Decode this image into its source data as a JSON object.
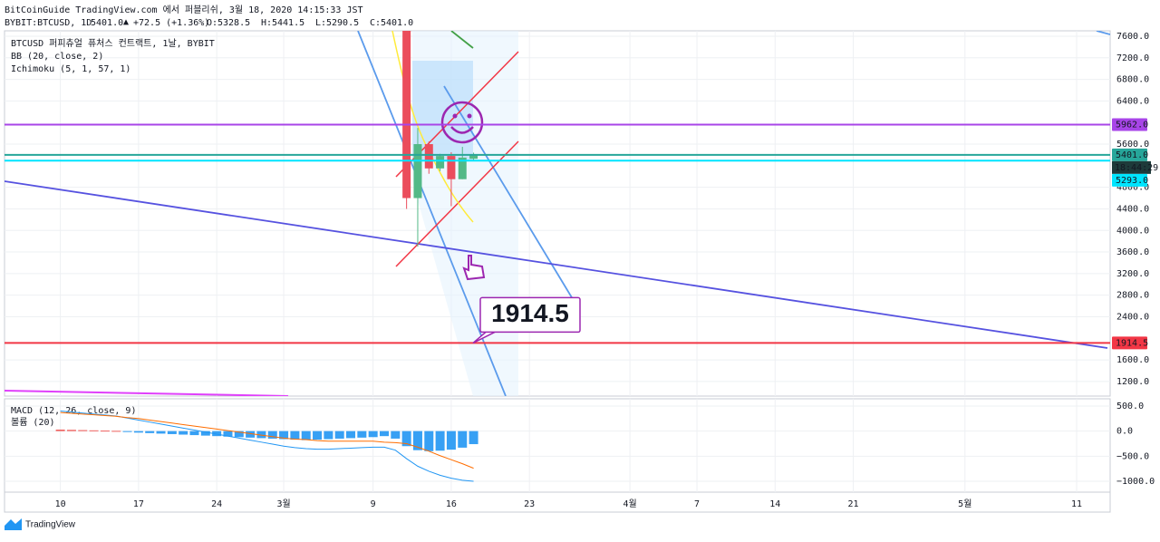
{
  "header": {
    "title": "BitCoinGuide TradingView.com 에서 퍼블리쉬, 3월 18, 2020 14:15:33 JST",
    "symbol": "BYBIT:BTCUSD, 1D",
    "last": "5401.0",
    "arrow": "▲",
    "change": "+72.5 (+1.36%)",
    "ohlc": [
      {
        "label": "O:",
        "value": "5328.5"
      },
      {
        "label": "H:",
        "value": "5441.5"
      },
      {
        "label": "L:",
        "value": "5290.5"
      },
      {
        "label": "C:",
        "value": "5401.0"
      }
    ]
  },
  "chart_data": [
    {
      "type": "candlestick",
      "legend": [
        "BTCUSD 퍼피츄얼 퓨처스 컨트랙트, 1날, BYBIT",
        "BB (20, close, 2)",
        "Ichimoku (5, 1, 57, 1)"
      ],
      "x": [
        31,
        32,
        33,
        34,
        35,
        36,
        37
      ],
      "open": [
        7900,
        4600,
        5600,
        5150,
        5380,
        4950,
        5328.5
      ],
      "high": [
        7970,
        5900,
        5650,
        5420,
        5450,
        5550,
        5441.5
      ],
      "low": [
        4400,
        3700,
        5050,
        5100,
        4450,
        4950,
        5290.5
      ],
      "close": [
        4600,
        5600,
        5150,
        5380,
        4950,
        5350,
        5401
      ],
      "up_color": "#53b987",
      "down_color": "#eb4d5c",
      "xlim": [
        -5,
        94
      ],
      "xticks": [
        {
          "value": 0,
          "label": "10"
        },
        {
          "value": 7,
          "label": "17"
        },
        {
          "value": 14,
          "label": "24"
        },
        {
          "value": 20,
          "label": "3월"
        },
        {
          "value": 28,
          "label": "9"
        },
        {
          "value": 35,
          "label": "16"
        },
        {
          "value": 42,
          "label": "23"
        },
        {
          "value": 51,
          "label": "4월"
        },
        {
          "value": 57,
          "label": "7"
        },
        {
          "value": 64,
          "label": "14"
        },
        {
          "value": 71,
          "label": "21"
        },
        {
          "value": 81,
          "label": "5월"
        },
        {
          "value": 91,
          "label": "11"
        }
      ],
      "ylim": [
        930,
        7700
      ],
      "yticks": [
        {
          "value": 7600,
          "label": "7600.0"
        },
        {
          "value": 7200,
          "label": "7200.0"
        },
        {
          "value": 6800,
          "label": "6800.0"
        },
        {
          "value": 6400,
          "label": "6400.0"
        },
        {
          "value": 5600,
          "label": "5600.0"
        },
        {
          "value": 4800,
          "label": "4800.0"
        },
        {
          "value": 4400,
          "label": "4400.0"
        },
        {
          "value": 4000,
          "label": "4000.0"
        },
        {
          "value": 3600,
          "label": "3600.0"
        },
        {
          "value": 3200,
          "label": "3200.0"
        },
        {
          "value": 2800,
          "label": "2800.0"
        },
        {
          "value": 2400,
          "label": "2400.0"
        },
        {
          "value": 1600,
          "label": "1600.0"
        },
        {
          "value": 1200,
          "label": "1200.0"
        }
      ],
      "grid": true,
      "price_lines": [
        {
          "value": 5962,
          "label": "5962.0",
          "color": "#a845e8"
        },
        {
          "value": 5401,
          "label": "5401.0",
          "color": "#26a69a"
        },
        {
          "value": 5293,
          "label": "5293.0",
          "color": "#00e5ff"
        },
        {
          "value": 1914.5,
          "label": "1914.5",
          "color": "#f23645"
        }
      ],
      "countdown": "18:44:29",
      "annotation": {
        "value": 1914.5,
        "label": "1914.5"
      }
    },
    {
      "type": "macd",
      "legend": [
        "MACD (12, 26, close, 9)",
        "볼륨 (20)"
      ],
      "x": [
        0,
        1,
        2,
        3,
        4,
        5,
        6,
        7,
        8,
        9,
        10,
        11,
        12,
        13,
        14,
        15,
        16,
        17,
        18,
        19,
        20,
        21,
        22,
        23,
        24,
        25,
        26,
        27,
        28,
        29,
        30,
        31,
        32,
        33,
        34,
        35,
        36,
        37
      ],
      "series": [
        {
          "color": "#2196f3",
          "values": [
            30,
            25,
            20,
            15,
            10,
            5,
            -10,
            -30,
            -40,
            -50,
            -60,
            -70,
            -80,
            -90,
            -100,
            -110,
            -120,
            -130,
            -140,
            -150,
            -160,
            -170,
            -180,
            -170,
            -160,
            -150,
            -140,
            -130,
            -120,
            -100,
            -150,
            -300,
            -380,
            -400,
            -390,
            -370,
            -330,
            -260
          ]
        },
        {
          "color": "#2196f3",
          "values": [
            400,
            380,
            360,
            340,
            320,
            300,
            260,
            220,
            180,
            140,
            100,
            60,
            20,
            -20,
            -60,
            -100,
            -140,
            -180,
            -220,
            -260,
            -300,
            -330,
            -350,
            -360,
            -360,
            -350,
            -340,
            -330,
            -320,
            -320,
            -380,
            -550,
            -700,
            -800,
            -880,
            -940,
            -980,
            -1000
          ]
        },
        {
          "color": "#ff6d00",
          "values": [
            370,
            355,
            340,
            325,
            310,
            295,
            270,
            250,
            220,
            190,
            160,
            130,
            100,
            70,
            40,
            10,
            -20,
            -50,
            -80,
            -110,
            -140,
            -160,
            -170,
            -190,
            -200,
            -200,
            -200,
            -200,
            -200,
            -220,
            -230,
            -250,
            -320,
            -400,
            -490,
            -570,
            -650,
            -740
          ]
        }
      ],
      "neg_color": "#2196f3",
      "pos_color": "#ef5350",
      "y2lim": [
        -1217,
        644
      ],
      "y2ticks": [
        {
          "value": 500,
          "label": "500.0"
        },
        {
          "value": 0,
          "label": "0.0"
        },
        {
          "value": -500,
          "label": "−500.0"
        },
        {
          "value": -1000,
          "label": "−1000.0"
        }
      ]
    }
  ],
  "footer": {
    "brand": "TradingView"
  }
}
